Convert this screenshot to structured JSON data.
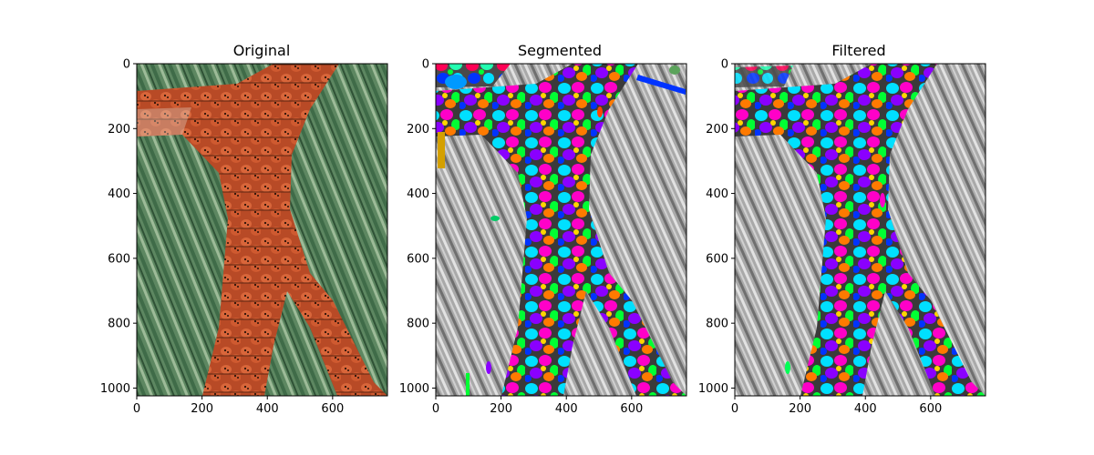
{
  "figure": {
    "panels": [
      {
        "title": "Original",
        "x_ticks": [
          "0",
          "200",
          "400",
          "600"
        ],
        "y_ticks": [
          "0",
          "200",
          "400",
          "600",
          "800",
          "1000"
        ],
        "image": "ladybug-cluster-on-branches-photo"
      },
      {
        "title": "Segmented",
        "x_ticks": [
          "0",
          "200",
          "400",
          "600"
        ],
        "y_ticks": [
          "0",
          "200",
          "400",
          "600",
          "800",
          "1000"
        ],
        "image": "grayscale-photo-with-colored-segment-overlay"
      },
      {
        "title": "Filtered",
        "x_ticks": [
          "0",
          "200",
          "400",
          "600"
        ],
        "y_ticks": [
          "0",
          "200",
          "400",
          "600",
          "800",
          "1000"
        ],
        "image": "grayscale-photo-with-filtered-colored-segments"
      }
    ]
  },
  "chart_data": [
    {
      "type": "image",
      "title": "Original",
      "xlim": [
        0,
        768
      ],
      "ylim": [
        1024,
        0
      ],
      "x_tick_values": [
        0,
        200,
        400,
        600
      ],
      "y_tick_values": [
        0,
        200,
        400,
        600,
        800,
        1000
      ]
    },
    {
      "type": "image",
      "title": "Segmented",
      "xlim": [
        0,
        768
      ],
      "ylim": [
        1024,
        0
      ],
      "x_tick_values": [
        0,
        200,
        400,
        600
      ],
      "y_tick_values": [
        0,
        200,
        400,
        600,
        800,
        1000
      ]
    },
    {
      "type": "image",
      "title": "Filtered",
      "xlim": [
        0,
        768
      ],
      "ylim": [
        1024,
        0
      ],
      "x_tick_values": [
        0,
        200,
        400,
        600
      ],
      "y_tick_values": [
        0,
        200,
        400,
        600,
        800,
        1000
      ]
    }
  ],
  "colors": {
    "ladybug_orange": "#c8562e",
    "ladybug_dark": "#6b2a14",
    "foliage_green": "#4f7a55",
    "foliage_light": "#8fae8c",
    "gray_bg": "#b8b8b8",
    "segment_palette": [
      "#00e0ff",
      "#ff00c8",
      "#00ff33",
      "#8a00ff",
      "#ff7a00",
      "#0033ff",
      "#ffd400",
      "#ff0055",
      "#22ffb0"
    ]
  }
}
